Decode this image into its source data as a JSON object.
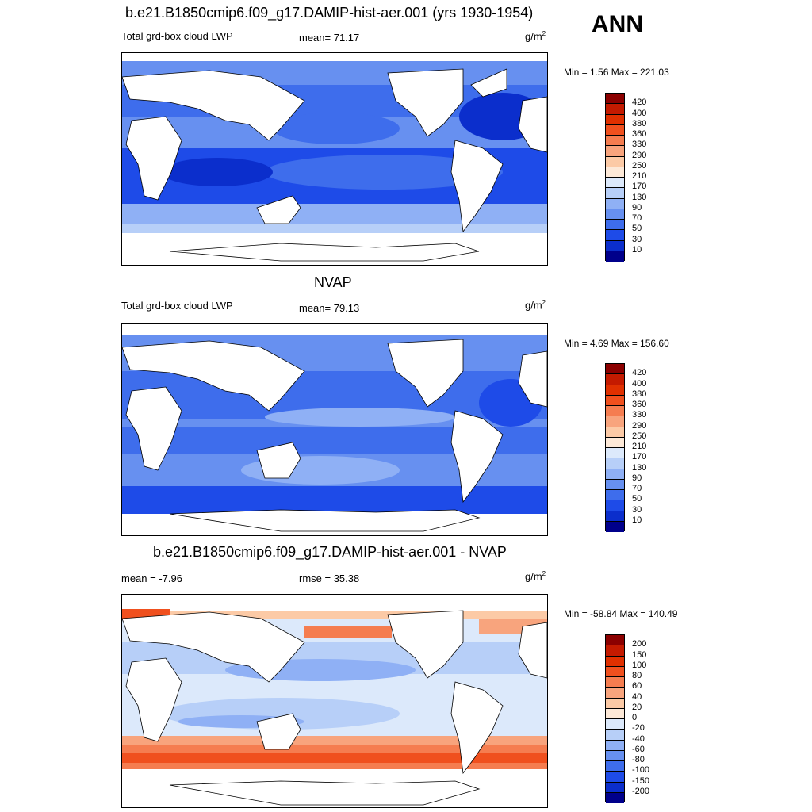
{
  "season": "ANN",
  "panels": [
    {
      "title": "b.e21.B1850cmip6.f09_g17.DAMIP-hist-aer.001 (yrs 1930-1954)",
      "left_label": "Total grd-box cloud LWP",
      "stat_label": "mean=  71.17",
      "unit": "g/m",
      "unit_exp": "2",
      "minmax": "Min =   1.56 Max = 221.03",
      "levels": [
        "420",
        "400",
        "380",
        "360",
        "330",
        "290",
        "250",
        "210",
        "170",
        "130",
        "90",
        "70",
        "50",
        "30",
        "10"
      ],
      "colors": [
        "#8b0000",
        "#c41a00",
        "#e03000",
        "#f0501e",
        "#f57d50",
        "#f8a47d",
        "#fccaa6",
        "#fde9d8",
        "#dce9fb",
        "#b7cff8",
        "#8fb0f5",
        "#6790f0",
        "#3e6dec",
        "#1e4be8",
        "#0b2ecc",
        "#00008b"
      ]
    },
    {
      "title": "NVAP",
      "left_label": "Total grd-box cloud LWP",
      "stat_label": "mean=  79.13",
      "unit": "g/m",
      "unit_exp": "2",
      "minmax": "Min =   4.69 Max = 156.60",
      "levels": [
        "420",
        "400",
        "380",
        "360",
        "330",
        "290",
        "250",
        "210",
        "170",
        "130",
        "90",
        "70",
        "50",
        "30",
        "10"
      ],
      "colors": [
        "#8b0000",
        "#c41a00",
        "#e03000",
        "#f0501e",
        "#f57d50",
        "#f8a47d",
        "#fccaa6",
        "#fde9d8",
        "#dce9fb",
        "#b7cff8",
        "#8fb0f5",
        "#6790f0",
        "#3e6dec",
        "#1e4be8",
        "#0b2ecc",
        "#00008b"
      ]
    },
    {
      "title": "b.e21.B1850cmip6.f09_g17.DAMIP-hist-aer.001 - NVAP",
      "left_label": "mean =  -7.96",
      "stat_label": "rmse =  35.38",
      "unit": "g/m",
      "unit_exp": "2",
      "minmax": "Min = -58.84 Max = 140.49",
      "levels": [
        "200",
        "150",
        "100",
        "80",
        "60",
        "40",
        "20",
        "0",
        "-20",
        "-40",
        "-60",
        "-80",
        "-100",
        "-150",
        "-200"
      ],
      "colors": [
        "#8b0000",
        "#c41a00",
        "#e03000",
        "#f0501e",
        "#f57d50",
        "#f8a47d",
        "#fccaa6",
        "#fde9d8",
        "#dce9fb",
        "#b7cff8",
        "#8fb0f5",
        "#6790f0",
        "#3e6dec",
        "#1e4be8",
        "#0b2ecc",
        "#00008b"
      ]
    }
  ]
}
